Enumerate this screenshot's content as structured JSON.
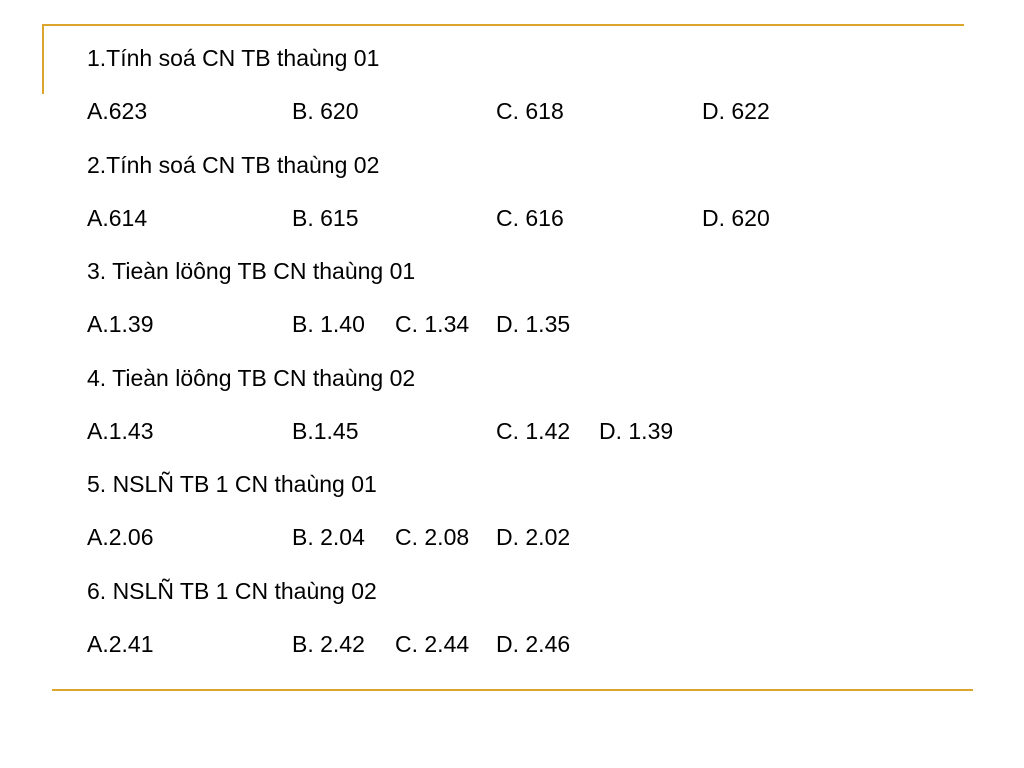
{
  "questions": [
    {
      "text": "1.Tính soá CN TB thaùng 01",
      "options": [
        "A.623",
        "B. 620",
        "C. 618",
        "D. 622"
      ]
    },
    {
      "text": "2.Tính soá CN TB thaùng 02",
      "options": [
        "A.614",
        "B. 615",
        "C. 616",
        "D. 620"
      ]
    },
    {
      "text": "3. Tieàn löông TB CN thaùng 01",
      "options": [
        "A.1.39",
        "B. 1.40",
        "C. 1.34",
        "D. 1.35"
      ]
    },
    {
      "text": "4. Tieàn löông TB CN thaùng 02",
      "options": [
        "A.1.43",
        "B.1.45",
        "C. 1.42",
        "D. 1.39"
      ]
    },
    {
      "text": "5. NSLÑ TB 1 CN thaùng 01",
      "options": [
        "A.2.06",
        "B. 2.04",
        "C. 2.08",
        "D. 2.02"
      ]
    },
    {
      "text": "6. NSLÑ TB 1 CN thaùng 02",
      "options": [
        "A.2.41",
        "B. 2.42",
        "C. 2.44",
        "D. 2.46"
      ]
    }
  ]
}
